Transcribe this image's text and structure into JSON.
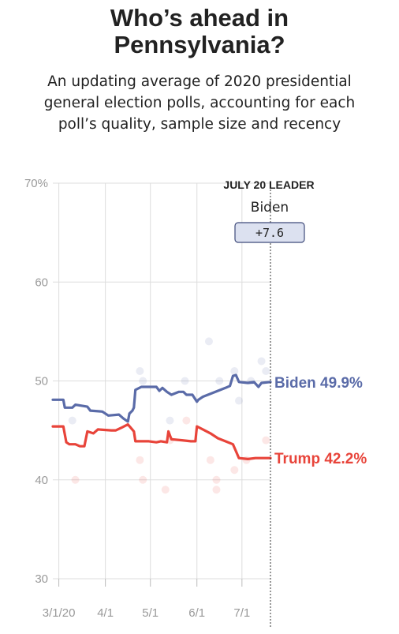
{
  "header": {
    "title_line1": "Who’s ahead in",
    "title_line2": "Pennsylvania?",
    "subtitle_line1": "An updating average of 2020 presidential",
    "subtitle_line2": "general election polls, accounting for each",
    "subtitle_line3": "poll’s quality, sample size and recency"
  },
  "leader": {
    "heading": "JULY 20 LEADER",
    "name": "Biden",
    "margin": "+7.6"
  },
  "colors": {
    "biden": "#5a6ba8",
    "trump": "#e8443a",
    "grid": "#dddddd",
    "axis_text": "#999999"
  },
  "chart_data": {
    "type": "line",
    "title": "Who’s ahead in Pennsylvania?",
    "xlabel": "",
    "ylabel": "",
    "ylim": [
      30,
      70
    ],
    "xlim": [
      "2020-02-26",
      "2020-07-20"
    ],
    "y_ticks": [
      "70%",
      "60",
      "50",
      "40",
      "30"
    ],
    "y_tick_values": [
      70,
      60,
      50,
      40,
      30
    ],
    "x_ticks": [
      "3/1/20",
      "4/1",
      "5/1",
      "6/1",
      "7/1"
    ],
    "x_tick_dates": [
      "2020-03-01",
      "2020-04-01",
      "2020-05-01",
      "2020-06-01",
      "2020-07-01"
    ],
    "grid": true,
    "series": [
      {
        "name": "Biden",
        "color": "#5a6ba8",
        "end_label": "Biden 49.9%",
        "points": [
          [
            "2020-02-26",
            48.1
          ],
          [
            "2020-03-04",
            48.1
          ],
          [
            "2020-03-05",
            47.3
          ],
          [
            "2020-03-10",
            47.3
          ],
          [
            "2020-03-12",
            47.6
          ],
          [
            "2020-03-20",
            47.4
          ],
          [
            "2020-03-22",
            47.0
          ],
          [
            "2020-03-30",
            46.9
          ],
          [
            "2020-04-03",
            46.5
          ],
          [
            "2020-04-10",
            46.6
          ],
          [
            "2020-04-13",
            46.2
          ],
          [
            "2020-04-16",
            45.9
          ],
          [
            "2020-04-17",
            46.7
          ],
          [
            "2020-04-19",
            47.0
          ],
          [
            "2020-04-20",
            47.3
          ],
          [
            "2020-04-21",
            49.1
          ],
          [
            "2020-04-25",
            49.4
          ],
          [
            "2020-05-05",
            49.4
          ],
          [
            "2020-05-07",
            49.0
          ],
          [
            "2020-05-09",
            49.3
          ],
          [
            "2020-05-12",
            48.9
          ],
          [
            "2020-05-15",
            48.6
          ],
          [
            "2020-05-20",
            48.9
          ],
          [
            "2020-05-23",
            48.9
          ],
          [
            "2020-05-25",
            48.6
          ],
          [
            "2020-05-29",
            48.6
          ],
          [
            "2020-06-01",
            47.9
          ],
          [
            "2020-06-02",
            48.1
          ],
          [
            "2020-06-05",
            48.4
          ],
          [
            "2020-06-10",
            48.7
          ],
          [
            "2020-06-15",
            49.0
          ],
          [
            "2020-06-20",
            49.3
          ],
          [
            "2020-06-23",
            49.5
          ],
          [
            "2020-06-25",
            50.5
          ],
          [
            "2020-06-27",
            50.6
          ],
          [
            "2020-06-29",
            49.9
          ],
          [
            "2020-07-05",
            49.8
          ],
          [
            "2020-07-09",
            49.9
          ],
          [
            "2020-07-12",
            49.4
          ],
          [
            "2020-07-14",
            49.8
          ],
          [
            "2020-07-20",
            49.9
          ]
        ]
      },
      {
        "name": "Trump",
        "color": "#e8443a",
        "end_label": "Trump 42.2%",
        "points": [
          [
            "2020-02-26",
            45.4
          ],
          [
            "2020-03-04",
            45.4
          ],
          [
            "2020-03-06",
            43.8
          ],
          [
            "2020-03-08",
            43.6
          ],
          [
            "2020-03-12",
            43.6
          ],
          [
            "2020-03-15",
            43.4
          ],
          [
            "2020-03-18",
            43.4
          ],
          [
            "2020-03-20",
            44.9
          ],
          [
            "2020-03-24",
            44.7
          ],
          [
            "2020-03-27",
            45.1
          ],
          [
            "2020-04-05",
            45.0
          ],
          [
            "2020-04-08",
            45.0
          ],
          [
            "2020-04-12",
            45.3
          ],
          [
            "2020-04-16",
            45.6
          ],
          [
            "2020-04-20",
            44.9
          ],
          [
            "2020-04-21",
            43.9
          ],
          [
            "2020-04-30",
            43.9
          ],
          [
            "2020-05-05",
            43.8
          ],
          [
            "2020-05-08",
            43.9
          ],
          [
            "2020-05-12",
            43.8
          ],
          [
            "2020-05-13",
            44.9
          ],
          [
            "2020-05-15",
            44.1
          ],
          [
            "2020-05-22",
            44.0
          ],
          [
            "2020-05-28",
            43.9
          ],
          [
            "2020-05-31",
            43.9
          ],
          [
            "2020-06-01",
            45.4
          ],
          [
            "2020-06-05",
            45.1
          ],
          [
            "2020-06-10",
            44.7
          ],
          [
            "2020-06-15",
            44.2
          ],
          [
            "2020-06-20",
            43.9
          ],
          [
            "2020-06-25",
            43.6
          ],
          [
            "2020-06-27",
            42.9
          ],
          [
            "2020-06-29",
            42.2
          ],
          [
            "2020-07-05",
            42.1
          ],
          [
            "2020-07-10",
            42.2
          ],
          [
            "2020-07-20",
            42.2
          ]
        ]
      }
    ],
    "polls": {
      "biden": [
        [
          "2020-03-10",
          46.0
        ],
        [
          "2020-04-24",
          51.0
        ],
        [
          "2020-04-26",
          50.0
        ],
        [
          "2020-05-14",
          46.0
        ],
        [
          "2020-05-24",
          50.0
        ],
        [
          "2020-06-09",
          54.0
        ],
        [
          "2020-06-16",
          50.0
        ],
        [
          "2020-06-26",
          51.0
        ],
        [
          "2020-06-29",
          48.0
        ],
        [
          "2020-07-07",
          50.0
        ],
        [
          "2020-07-14",
          52.0
        ],
        [
          "2020-07-17",
          51.0
        ]
      ],
      "trump": [
        [
          "2020-03-12",
          40.0
        ],
        [
          "2020-04-24",
          42.0
        ],
        [
          "2020-04-26",
          40.0
        ],
        [
          "2020-05-11",
          39.0
        ],
        [
          "2020-05-14",
          44.0
        ],
        [
          "2020-05-25",
          46.0
        ],
        [
          "2020-06-10",
          42.0
        ],
        [
          "2020-06-14",
          40.0
        ],
        [
          "2020-06-14",
          39.0
        ],
        [
          "2020-06-26",
          41.0
        ],
        [
          "2020-07-04",
          42.0
        ],
        [
          "2020-07-17",
          44.0
        ]
      ]
    }
  }
}
